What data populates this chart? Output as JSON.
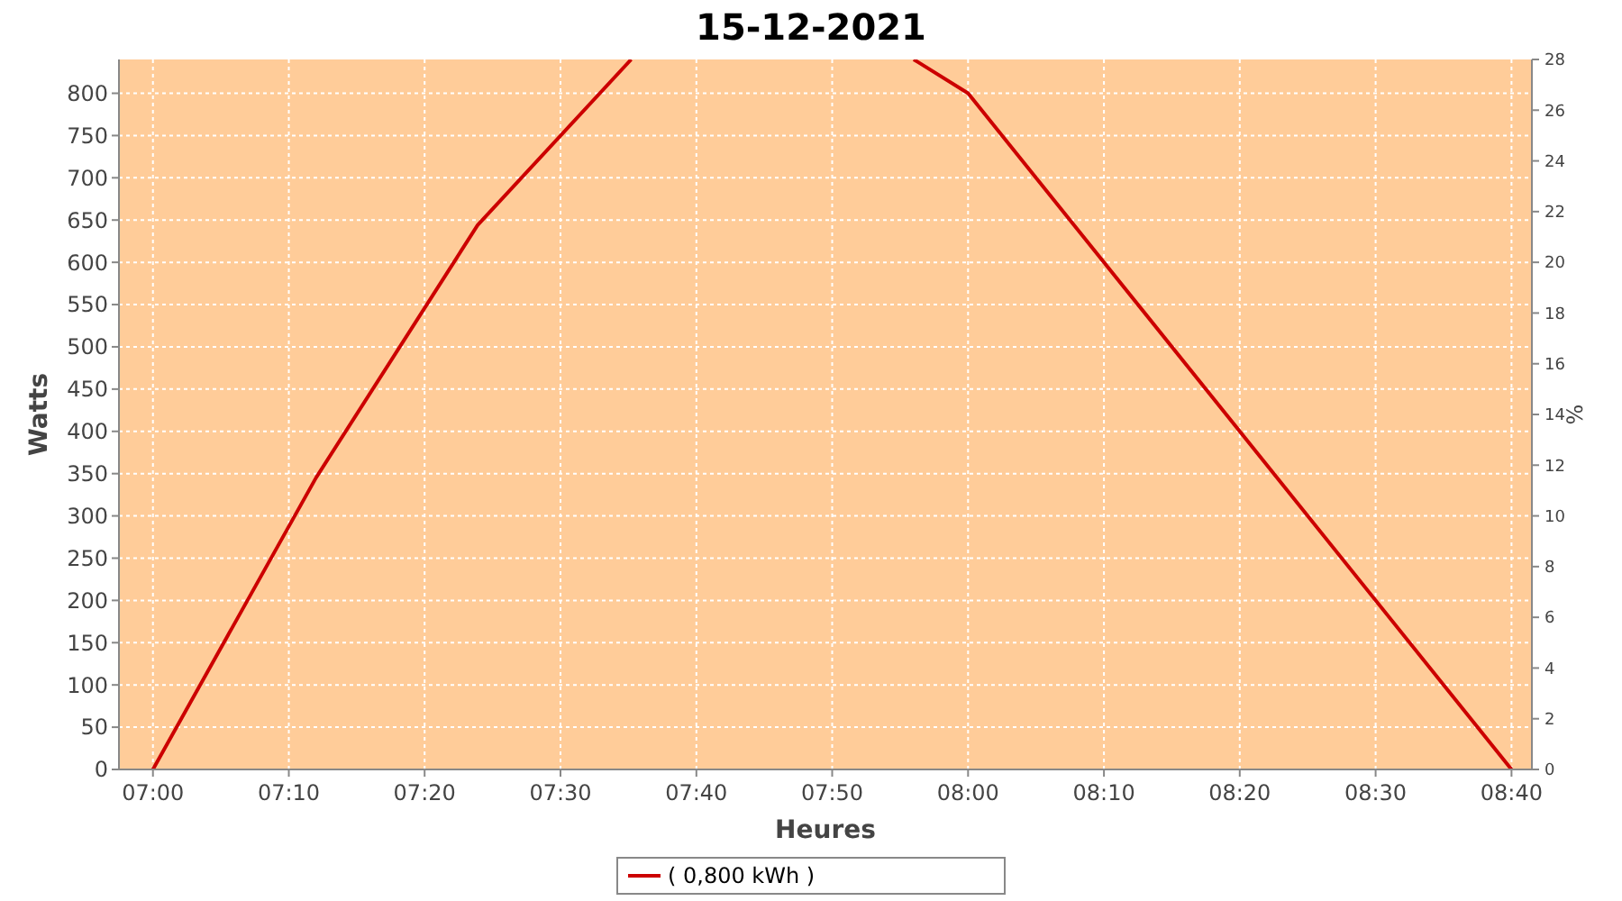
{
  "chart_data": {
    "type": "line",
    "title": "15-12-2021",
    "xlabel": "Heures",
    "ylabel": "Watts",
    "y2label": "%",
    "x": [
      7,
      7.2,
      7.3983,
      7.5867
    ],
    "series": [
      {
        "name": "( 0,800 kWh )",
        "color": "#cc0000",
        "values": [
          0,
          345,
          644,
          840
        ]
      },
      {
        "color": "#cc0000",
        "x": [
          7.9333,
          8,
          8.6667
        ],
        "values": [
          840,
          800,
          0
        ]
      }
    ],
    "xlim": [
      6.9583,
      8.6917
    ],
    "xticks": [
      {
        "value": 7,
        "label": "07:00"
      },
      {
        "value": 7.1667,
        "label": "07:10"
      },
      {
        "value": 7.3333,
        "label": "07:20"
      },
      {
        "value": 7.5,
        "label": "07:30"
      },
      {
        "value": 7.6667,
        "label": "07:40"
      },
      {
        "value": 7.8333,
        "label": "07:50"
      },
      {
        "value": 8,
        "label": "08:00"
      },
      {
        "value": 8.1667,
        "label": "08:10"
      },
      {
        "value": 8.3333,
        "label": "08:20"
      },
      {
        "value": 8.5,
        "label": "08:30"
      },
      {
        "value": 8.6667,
        "label": "08:40"
      }
    ],
    "ylim": [
      0,
      840
    ],
    "yticks": [
      0,
      50,
      100,
      150,
      200,
      250,
      300,
      350,
      400,
      450,
      500,
      550,
      600,
      650,
      700,
      750,
      800
    ],
    "y2lim": [
      0,
      28
    ],
    "y2ticks": [
      0,
      2,
      4,
      6,
      8,
      10,
      12,
      14,
      16,
      18,
      20,
      22,
      24,
      26,
      28
    ],
    "grid": true,
    "legend": "bottom",
    "line_style": "solid",
    "marker": "none"
  }
}
